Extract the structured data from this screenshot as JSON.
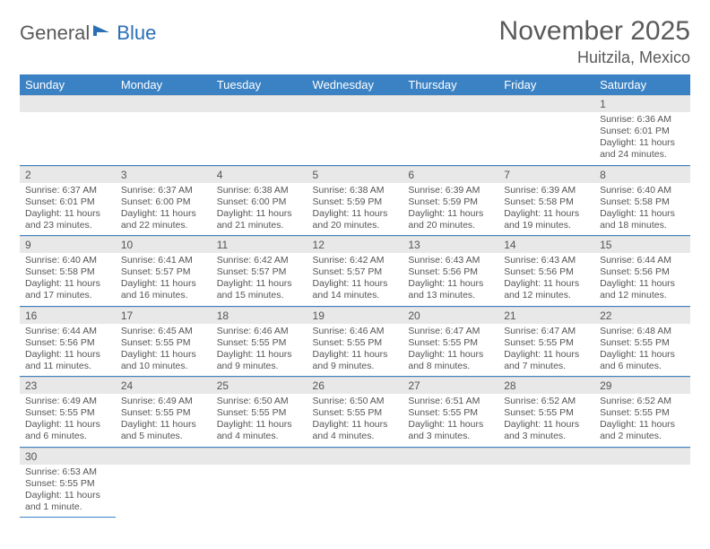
{
  "logo": {
    "part1": "General",
    "part2": "Blue"
  },
  "title": "November 2025",
  "location": "Huitzila, Mexico",
  "colors": {
    "header_bg": "#3b82c4",
    "header_text": "#ffffff",
    "daynum_bg": "#e8e8e8",
    "border": "#3b82c4",
    "text": "#555555",
    "logo_gray": "#5a5a5a",
    "logo_blue": "#2a6fb5"
  },
  "typography": {
    "title_fontsize": 30,
    "location_fontsize": 18,
    "dayheader_fontsize": 13,
    "daynum_fontsize": 12,
    "body_fontsize": 10.5
  },
  "calendar": {
    "type": "table",
    "columns": [
      "Sunday",
      "Monday",
      "Tuesday",
      "Wednesday",
      "Thursday",
      "Friday",
      "Saturday"
    ],
    "weeks": [
      [
        null,
        null,
        null,
        null,
        null,
        null,
        {
          "n": "1",
          "sr": "Sunrise: 6:36 AM",
          "ss": "Sunset: 6:01 PM",
          "dl": "Daylight: 11 hours and 24 minutes."
        }
      ],
      [
        {
          "n": "2",
          "sr": "Sunrise: 6:37 AM",
          "ss": "Sunset: 6:01 PM",
          "dl": "Daylight: 11 hours and 23 minutes."
        },
        {
          "n": "3",
          "sr": "Sunrise: 6:37 AM",
          "ss": "Sunset: 6:00 PM",
          "dl": "Daylight: 11 hours and 22 minutes."
        },
        {
          "n": "4",
          "sr": "Sunrise: 6:38 AM",
          "ss": "Sunset: 6:00 PM",
          "dl": "Daylight: 11 hours and 21 minutes."
        },
        {
          "n": "5",
          "sr": "Sunrise: 6:38 AM",
          "ss": "Sunset: 5:59 PM",
          "dl": "Daylight: 11 hours and 20 minutes."
        },
        {
          "n": "6",
          "sr": "Sunrise: 6:39 AM",
          "ss": "Sunset: 5:59 PM",
          "dl": "Daylight: 11 hours and 20 minutes."
        },
        {
          "n": "7",
          "sr": "Sunrise: 6:39 AM",
          "ss": "Sunset: 5:58 PM",
          "dl": "Daylight: 11 hours and 19 minutes."
        },
        {
          "n": "8",
          "sr": "Sunrise: 6:40 AM",
          "ss": "Sunset: 5:58 PM",
          "dl": "Daylight: 11 hours and 18 minutes."
        }
      ],
      [
        {
          "n": "9",
          "sr": "Sunrise: 6:40 AM",
          "ss": "Sunset: 5:58 PM",
          "dl": "Daylight: 11 hours and 17 minutes."
        },
        {
          "n": "10",
          "sr": "Sunrise: 6:41 AM",
          "ss": "Sunset: 5:57 PM",
          "dl": "Daylight: 11 hours and 16 minutes."
        },
        {
          "n": "11",
          "sr": "Sunrise: 6:42 AM",
          "ss": "Sunset: 5:57 PM",
          "dl": "Daylight: 11 hours and 15 minutes."
        },
        {
          "n": "12",
          "sr": "Sunrise: 6:42 AM",
          "ss": "Sunset: 5:57 PM",
          "dl": "Daylight: 11 hours and 14 minutes."
        },
        {
          "n": "13",
          "sr": "Sunrise: 6:43 AM",
          "ss": "Sunset: 5:56 PM",
          "dl": "Daylight: 11 hours and 13 minutes."
        },
        {
          "n": "14",
          "sr": "Sunrise: 6:43 AM",
          "ss": "Sunset: 5:56 PM",
          "dl": "Daylight: 11 hours and 12 minutes."
        },
        {
          "n": "15",
          "sr": "Sunrise: 6:44 AM",
          "ss": "Sunset: 5:56 PM",
          "dl": "Daylight: 11 hours and 12 minutes."
        }
      ],
      [
        {
          "n": "16",
          "sr": "Sunrise: 6:44 AM",
          "ss": "Sunset: 5:56 PM",
          "dl": "Daylight: 11 hours and 11 minutes."
        },
        {
          "n": "17",
          "sr": "Sunrise: 6:45 AM",
          "ss": "Sunset: 5:55 PM",
          "dl": "Daylight: 11 hours and 10 minutes."
        },
        {
          "n": "18",
          "sr": "Sunrise: 6:46 AM",
          "ss": "Sunset: 5:55 PM",
          "dl": "Daylight: 11 hours and 9 minutes."
        },
        {
          "n": "19",
          "sr": "Sunrise: 6:46 AM",
          "ss": "Sunset: 5:55 PM",
          "dl": "Daylight: 11 hours and 9 minutes."
        },
        {
          "n": "20",
          "sr": "Sunrise: 6:47 AM",
          "ss": "Sunset: 5:55 PM",
          "dl": "Daylight: 11 hours and 8 minutes."
        },
        {
          "n": "21",
          "sr": "Sunrise: 6:47 AM",
          "ss": "Sunset: 5:55 PM",
          "dl": "Daylight: 11 hours and 7 minutes."
        },
        {
          "n": "22",
          "sr": "Sunrise: 6:48 AM",
          "ss": "Sunset: 5:55 PM",
          "dl": "Daylight: 11 hours and 6 minutes."
        }
      ],
      [
        {
          "n": "23",
          "sr": "Sunrise: 6:49 AM",
          "ss": "Sunset: 5:55 PM",
          "dl": "Daylight: 11 hours and 6 minutes."
        },
        {
          "n": "24",
          "sr": "Sunrise: 6:49 AM",
          "ss": "Sunset: 5:55 PM",
          "dl": "Daylight: 11 hours and 5 minutes."
        },
        {
          "n": "25",
          "sr": "Sunrise: 6:50 AM",
          "ss": "Sunset: 5:55 PM",
          "dl": "Daylight: 11 hours and 4 minutes."
        },
        {
          "n": "26",
          "sr": "Sunrise: 6:50 AM",
          "ss": "Sunset: 5:55 PM",
          "dl": "Daylight: 11 hours and 4 minutes."
        },
        {
          "n": "27",
          "sr": "Sunrise: 6:51 AM",
          "ss": "Sunset: 5:55 PM",
          "dl": "Daylight: 11 hours and 3 minutes."
        },
        {
          "n": "28",
          "sr": "Sunrise: 6:52 AM",
          "ss": "Sunset: 5:55 PM",
          "dl": "Daylight: 11 hours and 3 minutes."
        },
        {
          "n": "29",
          "sr": "Sunrise: 6:52 AM",
          "ss": "Sunset: 5:55 PM",
          "dl": "Daylight: 11 hours and 2 minutes."
        }
      ],
      [
        {
          "n": "30",
          "sr": "Sunrise: 6:53 AM",
          "ss": "Sunset: 5:55 PM",
          "dl": "Daylight: 11 hours and 1 minute."
        },
        null,
        null,
        null,
        null,
        null,
        null
      ]
    ]
  }
}
